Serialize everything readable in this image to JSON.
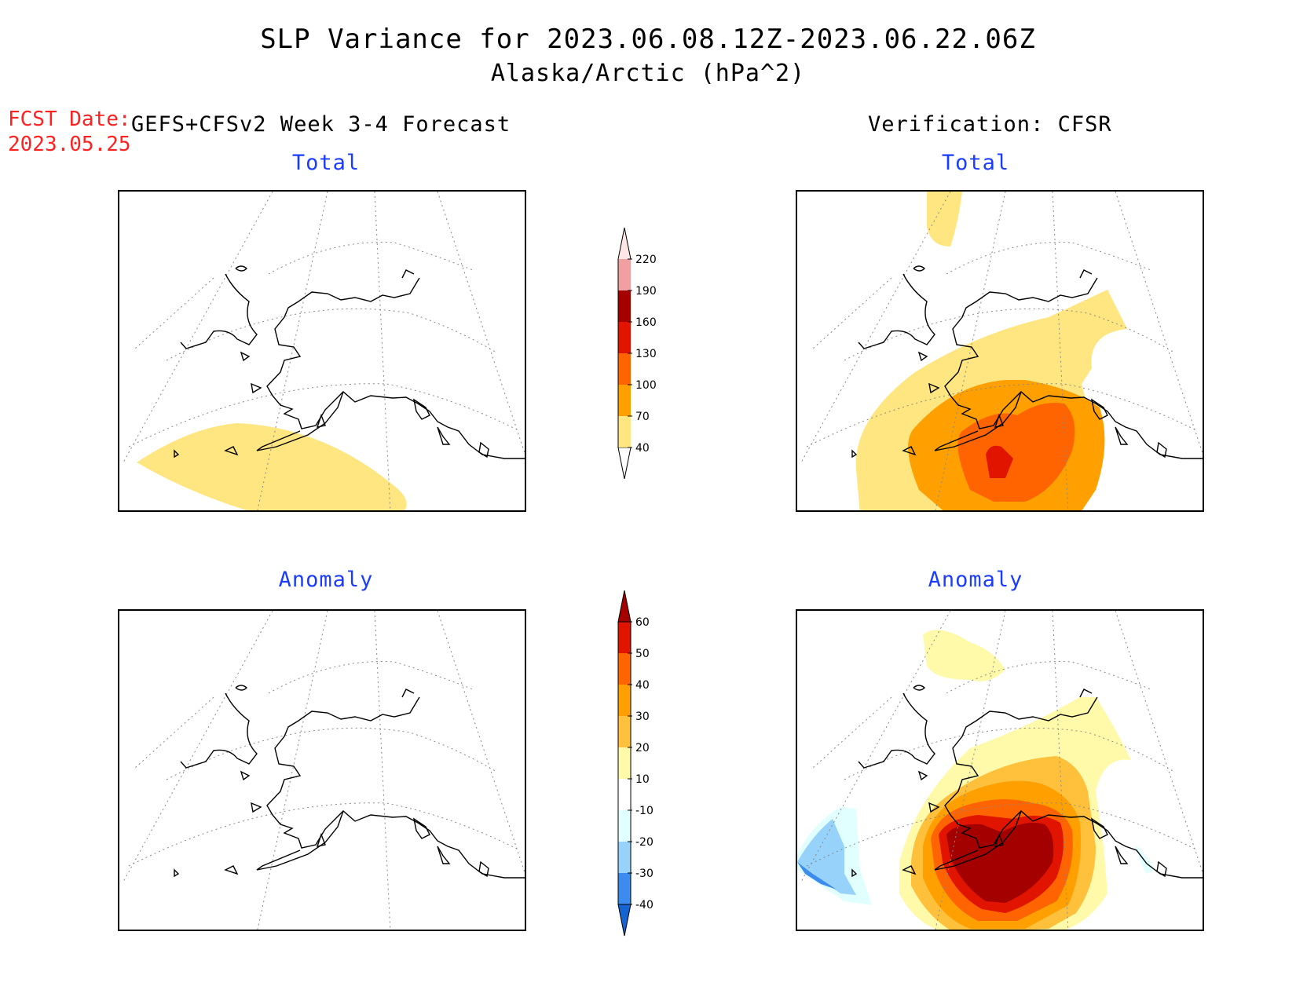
{
  "header": {
    "title": "SLP Variance for 2023.06.08.12Z-2023.06.22.06Z",
    "subtitle": "Alaska/Arctic (hPa^2)",
    "fcst_date_label": "FCST Date:",
    "fcst_date_value": "2023.05.25",
    "model_title": "GEFS+CFSv2 Week 3-4 Forecast",
    "verification_title": "Verification: CFSR"
  },
  "panels": {
    "forecast_total": "Total",
    "verification_total": "Total",
    "forecast_anomaly": "Anomaly",
    "verification_anomaly": "Anomaly"
  },
  "colorbars": {
    "total": {
      "levels": [
        "40",
        "70",
        "100",
        "130",
        "160",
        "190",
        "220"
      ],
      "colors": [
        "#ffe680",
        "#ffa000",
        "#ff6400",
        "#e11400",
        "#a50000",
        "#f0a0a0",
        "#ffe6e6"
      ]
    },
    "anomaly": {
      "levels": [
        "60",
        "50",
        "40",
        "30",
        "20",
        "10",
        "-10",
        "-20",
        "-30",
        "-40"
      ],
      "colors_top_to_bottom": [
        "#a50000",
        "#e11400",
        "#ff6400",
        "#ffa000",
        "#ffc03c",
        "#fffaaa",
        "#ffffff",
        "#e1ffff",
        "#96d2fa",
        "#3c8cf0",
        "#1464d2"
      ]
    }
  }
}
